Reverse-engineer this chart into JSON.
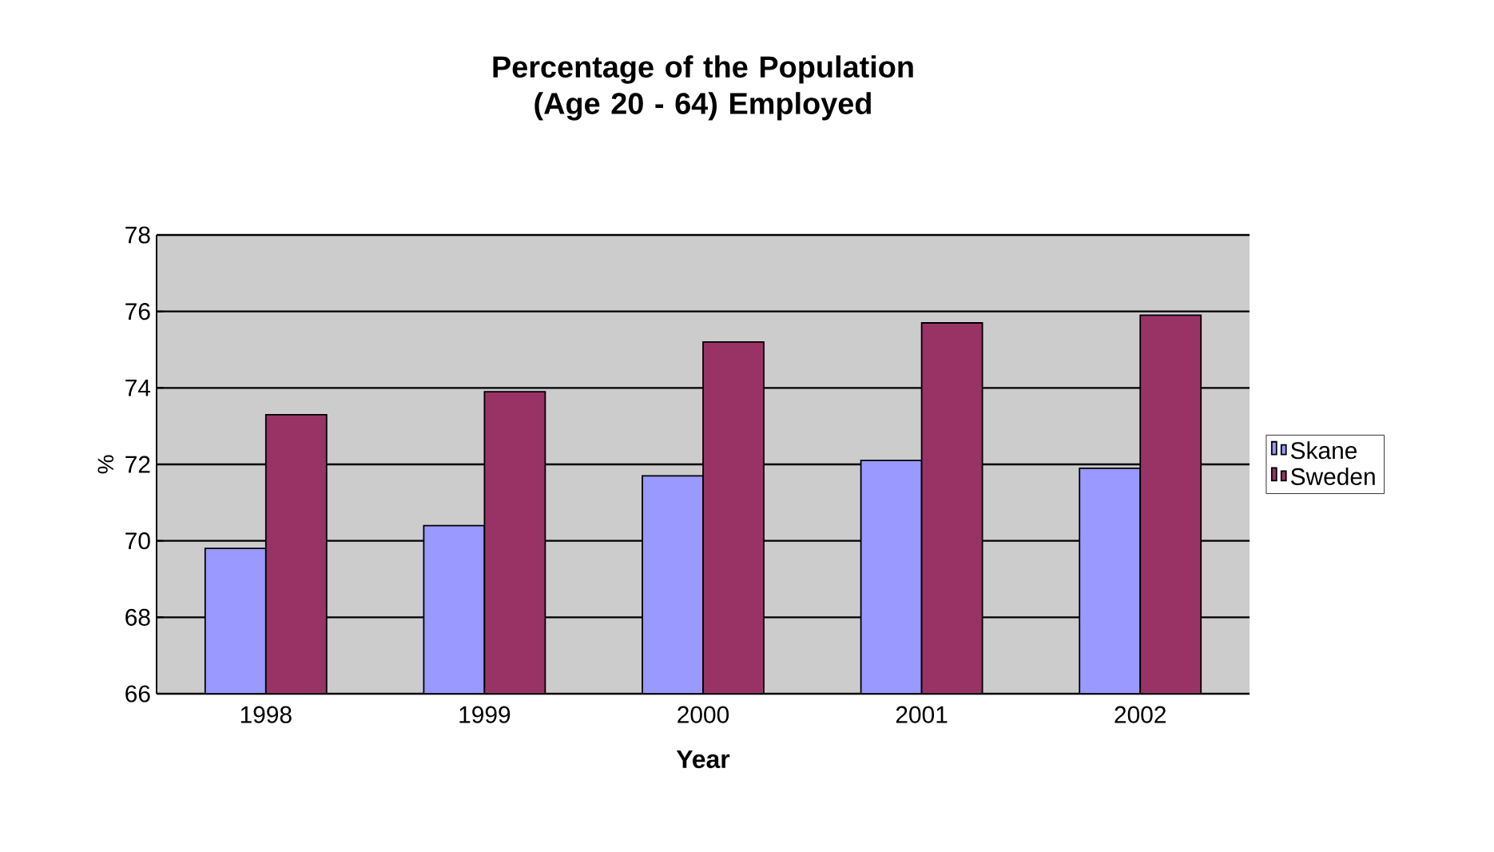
{
  "chart_data": {
    "type": "bar",
    "title": "Percentage of the Population (Age 20 - 64) Employed",
    "xlabel": "Year",
    "ylabel": "%",
    "categories": [
      "1998",
      "1999",
      "2000",
      "2001",
      "2002"
    ],
    "series": [
      {
        "name": "Skane",
        "color": "#9999ff",
        "values": [
          69.8,
          70.4,
          71.7,
          72.1,
          71.9
        ]
      },
      {
        "name": "Sweden",
        "color": "#993366",
        "values": [
          73.3,
          73.9,
          75.2,
          75.7,
          75.9
        ]
      }
    ],
    "ylim": [
      66,
      78
    ],
    "yticks": [
      66,
      68,
      70,
      72,
      74,
      76,
      78
    ],
    "grid": "y",
    "legend": "right"
  }
}
